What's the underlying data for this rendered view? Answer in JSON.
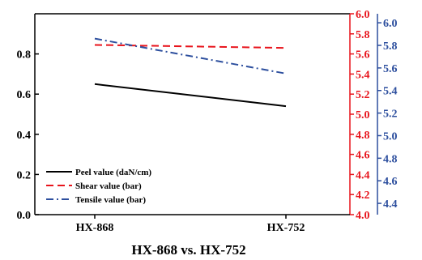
{
  "chart_data": {
    "type": "line",
    "categories": [
      "HX-868",
      "HX-752"
    ],
    "xlabel": "HX-868 vs. HX-752",
    "grid": false,
    "legend_position": "bottom-left",
    "axes": {
      "left": {
        "ylim": [
          0.0,
          1.0
        ],
        "ticks": [
          "0.0",
          "0.2",
          "0.4",
          "0.6",
          "0.8"
        ],
        "values": [
          0.0,
          0.2,
          0.4,
          0.6,
          0.8
        ],
        "color": "#000000"
      },
      "right1": {
        "ylim": [
          4.0,
          6.0
        ],
        "ticks": [
          "4.0",
          "4.2",
          "4.4",
          "4.6",
          "4.8",
          "5.0",
          "5.2",
          "5.4",
          "5.6",
          "5.8",
          "6.0"
        ],
        "values": [
          4.0,
          4.2,
          4.4,
          4.6,
          4.8,
          5.0,
          5.2,
          5.4,
          5.6,
          5.8,
          6.0
        ],
        "color": "#e8141c"
      },
      "right2": {
        "ylim": [
          4.3,
          6.08
        ],
        "ticks": [
          "4.4",
          "4.6",
          "4.8",
          "5.0",
          "5.2",
          "5.4",
          "5.6",
          "5.8",
          "6.0"
        ],
        "values": [
          4.4,
          4.6,
          4.8,
          5.0,
          5.2,
          5.4,
          5.6,
          5.8,
          6.0
        ],
        "color": "#2d4f9e"
      }
    },
    "series": [
      {
        "name": "Peel value (daN/cm)",
        "axis": "left",
        "values": [
          0.65,
          0.54
        ],
        "color": "#000000",
        "dash": "solid"
      },
      {
        "name": "Shear value (bar)",
        "axis": "right1",
        "values": [
          5.69,
          5.66
        ],
        "color": "#e8141c",
        "dash": "dashed"
      },
      {
        "name": "Tensile value (bar)",
        "axis": "right2",
        "values": [
          5.86,
          5.55
        ],
        "color": "#2d4f9e",
        "dash": "dashdot"
      }
    ]
  }
}
